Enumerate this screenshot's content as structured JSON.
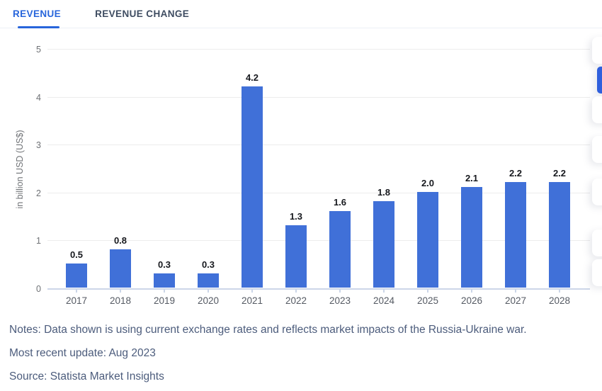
{
  "tabs": [
    {
      "label": "REVENUE",
      "active": true
    },
    {
      "label": "REVENUE CHANGE",
      "active": false
    }
  ],
  "chart_data": {
    "type": "bar",
    "categories": [
      "2017",
      "2018",
      "2019",
      "2020",
      "2021",
      "2022",
      "2023",
      "2024",
      "2025",
      "2026",
      "2027",
      "2028"
    ],
    "values": [
      0.5,
      0.8,
      0.3,
      0.3,
      4.2,
      1.3,
      1.6,
      1.8,
      2.0,
      2.1,
      2.2,
      2.2
    ],
    "value_labels": [
      "0.5",
      "0.8",
      "0.3",
      "0.3",
      "4.2",
      "1.3",
      "1.6",
      "1.8",
      "2.0",
      "2.1",
      "2.2",
      "2.2"
    ],
    "title": "",
    "xlabel": "",
    "ylabel": "in billion USD (US$)",
    "yticks": [
      0,
      1,
      2,
      3,
      4,
      5
    ],
    "ylim": [
      0,
      5
    ],
    "grid": true,
    "legend": "none",
    "bar_color": "#4070d8"
  },
  "footer": {
    "notes": "Notes: Data shown is using current exchange rates and reflects market impacts of the Russia-Ukraine war.",
    "update": "Most recent update: Aug 2023",
    "source": "Source: Statista Market Insights"
  },
  "colors": {
    "accent_blue": "#2765db",
    "bar_blue": "#4070d8",
    "side_toolbar_active": "#2f5fdd"
  }
}
